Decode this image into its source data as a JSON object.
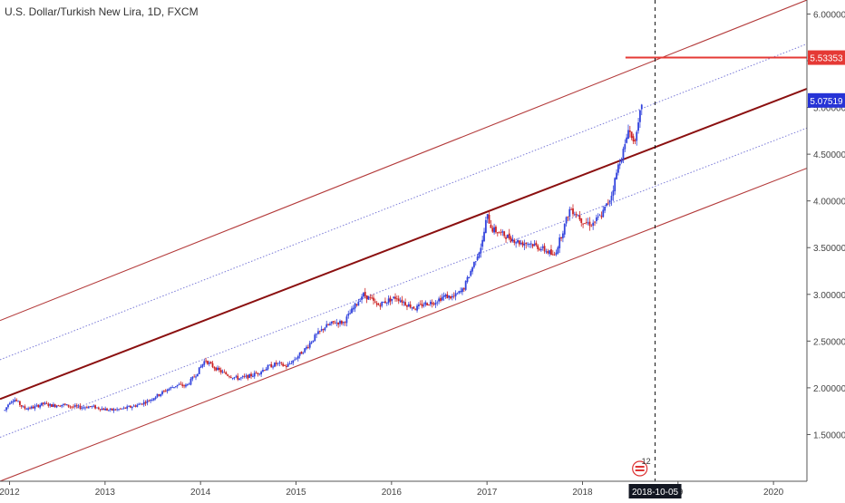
{
  "chart_data": {
    "type": "candlestick",
    "title": "U.S. Dollar/Turkish New Lira, 1D, FXCM",
    "x_tick_labels": [
      "2012",
      "2013",
      "2014",
      "2015",
      "2016",
      "2017",
      "2018",
      "19",
      "2020"
    ],
    "y_tick_labels": [
      "6.00000",
      "5.50000",
      "5.00000",
      "4.50000",
      "4.00000",
      "3.50000",
      "3.00000",
      "2.50000",
      "2.00000",
      "1.50000"
    ],
    "x_domain": [
      2011.9,
      2020.35
    ],
    "y_domain": [
      1.0,
      6.15
    ],
    "price_path": [
      [
        2011.95,
        1.76
      ],
      [
        2012.0,
        1.85
      ],
      [
        2012.05,
        1.88
      ],
      [
        2012.15,
        1.78
      ],
      [
        2012.25,
        1.79
      ],
      [
        2012.35,
        1.83
      ],
      [
        2012.45,
        1.81
      ],
      [
        2012.55,
        1.82
      ],
      [
        2012.65,
        1.8
      ],
      [
        2012.75,
        1.79
      ],
      [
        2012.85,
        1.8
      ],
      [
        2012.95,
        1.78
      ],
      [
        2013.05,
        1.76
      ],
      [
        2013.15,
        1.77
      ],
      [
        2013.25,
        1.79
      ],
      [
        2013.35,
        1.82
      ],
      [
        2013.45,
        1.86
      ],
      [
        2013.55,
        1.92
      ],
      [
        2013.65,
        1.98
      ],
      [
        2013.75,
        2.03
      ],
      [
        2013.85,
        2.02
      ],
      [
        2013.95,
        2.14
      ],
      [
        2014.05,
        2.3
      ],
      [
        2014.1,
        2.25
      ],
      [
        2014.2,
        2.18
      ],
      [
        2014.3,
        2.13
      ],
      [
        2014.4,
        2.1
      ],
      [
        2014.5,
        2.12
      ],
      [
        2014.6,
        2.16
      ],
      [
        2014.7,
        2.22
      ],
      [
        2014.8,
        2.26
      ],
      [
        2014.9,
        2.23
      ],
      [
        2015.0,
        2.32
      ],
      [
        2015.1,
        2.42
      ],
      [
        2015.2,
        2.55
      ],
      [
        2015.3,
        2.65
      ],
      [
        2015.4,
        2.7
      ],
      [
        2015.5,
        2.7
      ],
      [
        2015.6,
        2.85
      ],
      [
        2015.7,
        3.0
      ],
      [
        2015.78,
        2.95
      ],
      [
        2015.85,
        2.88
      ],
      [
        2015.95,
        2.93
      ],
      [
        2016.05,
        2.97
      ],
      [
        2016.15,
        2.9
      ],
      [
        2016.25,
        2.85
      ],
      [
        2016.35,
        2.9
      ],
      [
        2016.45,
        2.92
      ],
      [
        2016.55,
        2.98
      ],
      [
        2016.65,
        2.97
      ],
      [
        2016.75,
        3.05
      ],
      [
        2016.85,
        3.3
      ],
      [
        2016.95,
        3.55
      ],
      [
        2017.0,
        3.85
      ],
      [
        2017.05,
        3.7
      ],
      [
        2017.15,
        3.65
      ],
      [
        2017.25,
        3.6
      ],
      [
        2017.35,
        3.55
      ],
      [
        2017.45,
        3.55
      ],
      [
        2017.55,
        3.5
      ],
      [
        2017.65,
        3.45
      ],
      [
        2017.7,
        3.4
      ],
      [
        2017.8,
        3.7
      ],
      [
        2017.87,
        3.92
      ],
      [
        2017.95,
        3.85
      ],
      [
        2018.0,
        3.78
      ],
      [
        2018.1,
        3.75
      ],
      [
        2018.2,
        3.85
      ],
      [
        2018.3,
        4.05
      ],
      [
        2018.38,
        4.4
      ],
      [
        2018.45,
        4.6
      ],
      [
        2018.48,
        4.8
      ],
      [
        2018.52,
        4.65
      ],
      [
        2018.57,
        4.7
      ],
      [
        2018.62,
        5.05
      ]
    ],
    "channel_lines": [
      {
        "role": "channel-upper",
        "points": [
          [
            2011.9,
            2.72
          ],
          [
            2020.35,
            6.15
          ]
        ]
      },
      {
        "role": "channel-mid",
        "points": [
          [
            2011.9,
            1.88
          ],
          [
            2020.35,
            5.2
          ]
        ]
      },
      {
        "role": "channel-lower",
        "points": [
          [
            2011.9,
            1.0
          ],
          [
            2020.35,
            4.35
          ]
        ]
      },
      {
        "role": "quarter-upper",
        "points": [
          [
            2011.9,
            2.3
          ],
          [
            2020.35,
            5.68
          ]
        ]
      },
      {
        "role": "quarter-lower",
        "points": [
          [
            2011.9,
            1.47
          ],
          [
            2020.35,
            4.78
          ]
        ]
      }
    ],
    "horizontal_level": {
      "value": 5.53353,
      "label": "5.53353",
      "x_start": 2018.45
    },
    "last_price": {
      "value": 5.07519,
      "label": "5.07519"
    },
    "vertical_marker": {
      "x": 2018.76,
      "label": "2018-10-05"
    },
    "event_icon": {
      "label": "12",
      "x": 2018.6
    },
    "grid": false,
    "colors": {
      "bull": "#3344dd",
      "bear": "#cc2222",
      "channel_main": "#8b1010",
      "channel_edge": "#b33a3a",
      "quarter_line": "#7b7bd8",
      "level_line": "#e53935",
      "level_label_bg": "#e53935",
      "last_label_bg": "#2633d6",
      "marker_label_bg": "#131722",
      "axis_text": "#444444"
    }
  }
}
